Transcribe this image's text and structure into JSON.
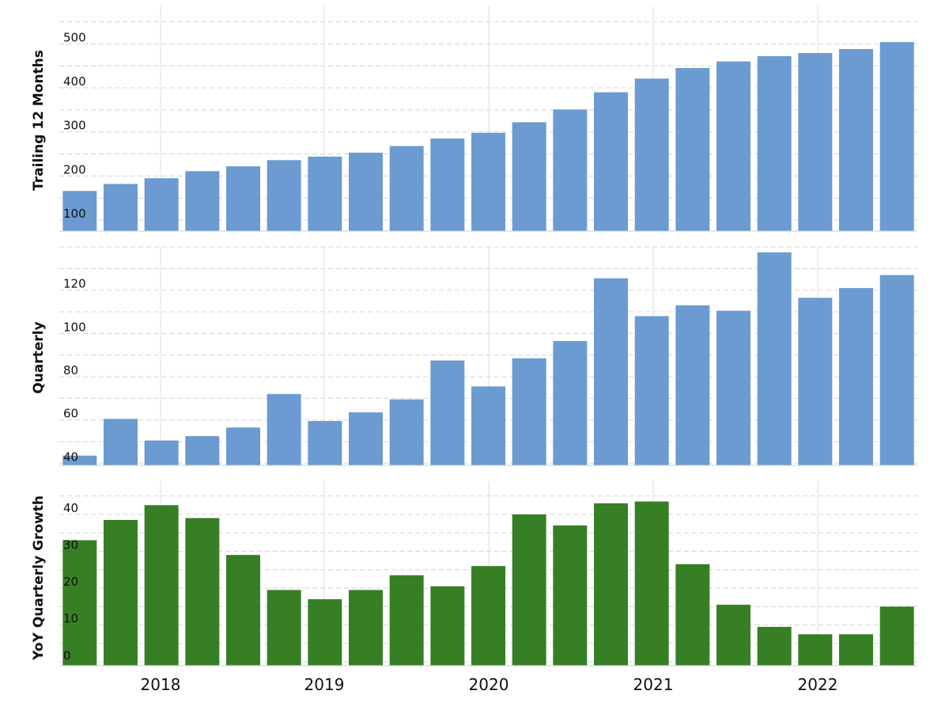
{
  "chart_data": [
    {
      "type": "bar",
      "ylabel": "Trailing 12 Months",
      "ylim": [
        75,
        585
      ],
      "yticks": [
        100,
        200,
        300,
        400,
        500
      ],
      "grid": true,
      "color": "#6b9bd1",
      "x_tick_labels": [
        "2018",
        "2019",
        "2020",
        "2021",
        "2022"
      ],
      "values": [
        166,
        182,
        195,
        211,
        222,
        236,
        244,
        253,
        268,
        285,
        298,
        322,
        351,
        390,
        421,
        445,
        460,
        472,
        479,
        488,
        504
      ]
    },
    {
      "type": "bar",
      "ylabel": "Quarterly",
      "ylim": [
        39,
        140
      ],
      "yticks": [
        40,
        60,
        80,
        100,
        120
      ],
      "grid": true,
      "color": "#6b9bd1",
      "x_tick_labels": [
        "2018",
        "2019",
        "2020",
        "2021",
        "2022"
      ],
      "values": [
        43.5,
        60.5,
        50.5,
        52.5,
        56.5,
        72,
        59.5,
        63.5,
        69.5,
        87.5,
        75.5,
        88.5,
        96.5,
        125.5,
        108,
        113,
        110.5,
        137.5,
        116.5,
        121,
        127
      ]
    },
    {
      "type": "bar",
      "ylabel": "YoY Quarterly Growth",
      "ylim": [
        -1,
        49
      ],
      "yticks": [
        0,
        10,
        20,
        30,
        40
      ],
      "grid": true,
      "color": "#377f25",
      "x_tick_labels": [
        "2018",
        "2019",
        "2020",
        "2021",
        "2022"
      ],
      "values": [
        33,
        38.5,
        42.5,
        39,
        29,
        19.5,
        17,
        19.5,
        23.5,
        20.5,
        26,
        40,
        37,
        43,
        43.5,
        26.5,
        15.5,
        9.5,
        7.5,
        7.5,
        15
      ]
    }
  ]
}
